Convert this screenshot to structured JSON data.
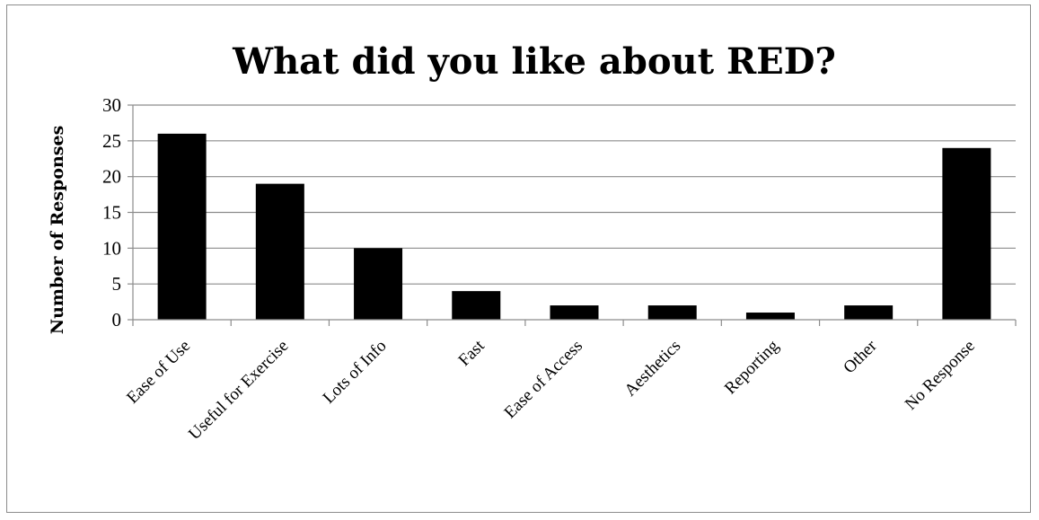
{
  "chart_data": {
    "type": "bar",
    "title": "What did you like about RED?",
    "xlabel": "",
    "ylabel": "Number of Responses",
    "categories": [
      "Ease of Use",
      "Useful for Exercise",
      "Lots of Info",
      "Fast",
      "Ease of Access",
      "Aesthetics",
      "Reporting",
      "Other",
      "No Response"
    ],
    "values": [
      26,
      19,
      10,
      4,
      2,
      2,
      1,
      2,
      24
    ],
    "ylim": [
      0,
      30
    ],
    "yticks": [
      0,
      5,
      10,
      15,
      20,
      25,
      30
    ],
    "grid": true,
    "legend": "none",
    "bar_color": "#000000",
    "grid_color": "#8c8c8c"
  }
}
